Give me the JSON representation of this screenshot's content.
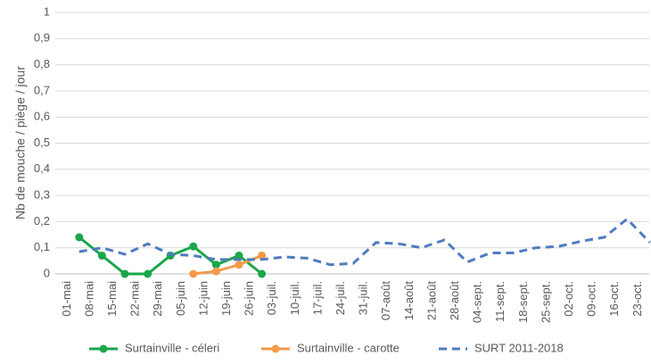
{
  "chart_data": {
    "type": "line",
    "y_label": "Nb de mouche / piège / jour",
    "categories": [
      "01-mai",
      "08-mai",
      "15-mai",
      "22-mai",
      "29-mai",
      "05-juin",
      "12-juin",
      "19-juin",
      "26-juin",
      "03-juil.",
      "10-juil.",
      "17-juil.",
      "24-juil.",
      "31-juil.",
      "07-août",
      "14-août",
      "21-août",
      "28-août",
      "04-sept.",
      "11-sept.",
      "18-sept.",
      "25-sept.",
      "02-oct.",
      "09-oct.",
      "16-oct.",
      "23-oct."
    ],
    "series": [
      {
        "name": "Surtainville - céleri",
        "color": "#1aa64a",
        "dash": false,
        "markers": true,
        "values": [
          0.14,
          0.07,
          0,
          0,
          0.07,
          0.105,
          0.035,
          0.07,
          0,
          null,
          null,
          null,
          null,
          null,
          null,
          null,
          null,
          null,
          null,
          null,
          null,
          null,
          null,
          null,
          null,
          null
        ]
      },
      {
        "name": "Surtainville - carotte",
        "color": "#f59a4a",
        "dash": false,
        "markers": true,
        "values": [
          null,
          null,
          null,
          null,
          null,
          0,
          0.01,
          0.035,
          0.07,
          null,
          null,
          null,
          null,
          null,
          null,
          null,
          null,
          null,
          null,
          null,
          null,
          null,
          null,
          null,
          null,
          null
        ]
      },
      {
        "name": "SURT 2011-2018",
        "color": "#4f7cc0",
        "dash": true,
        "markers": false,
        "values": [
          0.085,
          0.1,
          0.075,
          0.115,
          0.075,
          0.07,
          0.055,
          0.055,
          0.055,
          0.065,
          0.06,
          0.035,
          0.04,
          0.12,
          0.115,
          0.1,
          0.13,
          0.045,
          0.08,
          0.08,
          0.1,
          0.105,
          0.125,
          0.14,
          0.21,
          0.12
        ]
      }
    ],
    "ylim": [
      0,
      1
    ],
    "yticks": [
      0,
      {
        "value": 0.1,
        "label": "0,1"
      },
      {
        "value": 0.2,
        "label": "0,2"
      },
      {
        "value": 0.3,
        "label": "0,3"
      },
      {
        "value": 0.4,
        "label": "0,4"
      },
      {
        "value": 0.5,
        "label": "0,5"
      },
      {
        "value": 0.6,
        "label": "0,6"
      },
      {
        "value": 0.7,
        "label": "0,7"
      },
      {
        "value": 0.8,
        "label": "0,8"
      },
      {
        "value": 0.9,
        "label": "0,9"
      },
      1
    ],
    "grid": true,
    "legend": "bottom"
  }
}
